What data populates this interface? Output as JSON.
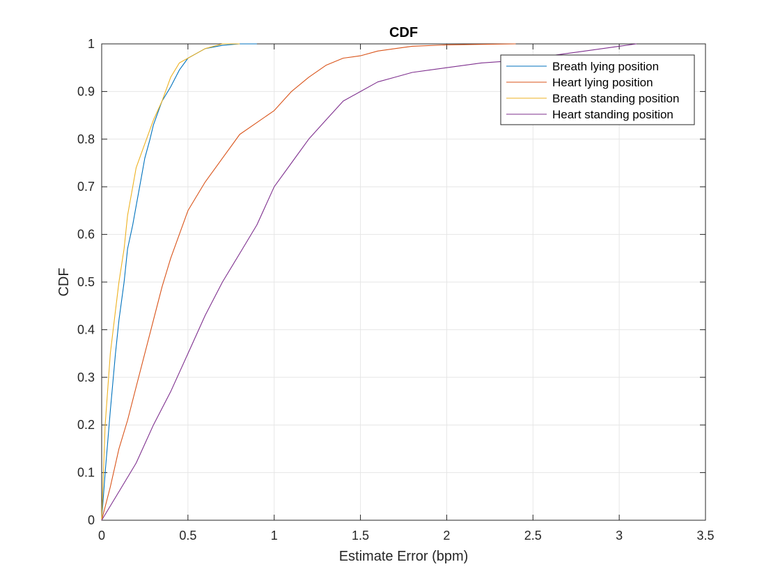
{
  "chart_data": {
    "type": "line",
    "title": "CDF",
    "xlabel": "Estimate Error (bpm)",
    "ylabel": "CDF",
    "xlim": [
      0,
      3.5
    ],
    "ylim": [
      0,
      1
    ],
    "xticks": [
      0,
      0.5,
      1,
      1.5,
      2,
      2.5,
      3,
      3.5
    ],
    "xtick_labels": [
      "0",
      "0.5",
      "1",
      "1.5",
      "2",
      "2.5",
      "3",
      "3.5"
    ],
    "yticks": [
      0,
      0.1,
      0.2,
      0.3,
      0.4,
      0.5,
      0.6,
      0.7,
      0.8,
      0.9,
      1
    ],
    "ytick_labels": [
      "0",
      "0.1",
      "0.2",
      "0.3",
      "0.4",
      "0.5",
      "0.6",
      "0.7",
      "0.8",
      "0.9",
      "1"
    ],
    "grid": true,
    "legend_position": "top-right",
    "series": [
      {
        "name": "Breath lying position",
        "color": "#0072BD",
        "x": [
          0,
          0.02,
          0.05,
          0.08,
          0.1,
          0.13,
          0.15,
          0.18,
          0.2,
          0.23,
          0.25,
          0.28,
          0.3,
          0.33,
          0.35,
          0.4,
          0.45,
          0.5,
          0.55,
          0.6,
          0.7,
          0.8,
          0.9
        ],
        "y": [
          0,
          0.1,
          0.23,
          0.35,
          0.42,
          0.5,
          0.57,
          0.62,
          0.66,
          0.72,
          0.76,
          0.8,
          0.83,
          0.86,
          0.88,
          0.91,
          0.945,
          0.97,
          0.98,
          0.99,
          0.997,
          1.0,
          1.0
        ]
      },
      {
        "name": "Heart lying position",
        "color": "#D95319",
        "x": [
          0,
          0.05,
          0.1,
          0.15,
          0.2,
          0.25,
          0.3,
          0.35,
          0.4,
          0.45,
          0.5,
          0.55,
          0.6,
          0.7,
          0.8,
          0.9,
          1.0,
          1.1,
          1.2,
          1.3,
          1.4,
          1.5,
          1.6,
          1.7,
          1.8,
          2.0,
          2.2,
          2.4
        ],
        "y": [
          0,
          0.07,
          0.15,
          0.21,
          0.28,
          0.35,
          0.42,
          0.49,
          0.55,
          0.6,
          0.65,
          0.68,
          0.71,
          0.76,
          0.81,
          0.835,
          0.86,
          0.9,
          0.93,
          0.955,
          0.97,
          0.975,
          0.985,
          0.99,
          0.995,
          0.998,
          0.999,
          1.0
        ]
      },
      {
        "name": "Breath standing position",
        "color": "#EDB120",
        "x": [
          0,
          0.02,
          0.05,
          0.08,
          0.1,
          0.13,
          0.15,
          0.18,
          0.2,
          0.25,
          0.3,
          0.35,
          0.4,
          0.45,
          0.5,
          0.55,
          0.6,
          0.65,
          0.7,
          0.8
        ],
        "y": [
          0,
          0.2,
          0.35,
          0.44,
          0.5,
          0.57,
          0.64,
          0.7,
          0.74,
          0.79,
          0.84,
          0.88,
          0.93,
          0.96,
          0.97,
          0.98,
          0.99,
          0.995,
          1.0,
          1.0
        ]
      },
      {
        "name": "Heart standing position",
        "color": "#7E2F8E",
        "x": [
          0,
          0.1,
          0.2,
          0.3,
          0.4,
          0.5,
          0.6,
          0.7,
          0.8,
          0.9,
          1.0,
          1.1,
          1.2,
          1.3,
          1.4,
          1.5,
          1.6,
          1.7,
          1.8,
          1.9,
          2.0,
          2.2,
          2.4,
          2.6,
          2.8,
          3.0,
          3.1
        ],
        "y": [
          0,
          0.06,
          0.12,
          0.2,
          0.27,
          0.35,
          0.43,
          0.5,
          0.56,
          0.62,
          0.7,
          0.75,
          0.8,
          0.84,
          0.88,
          0.9,
          0.92,
          0.93,
          0.94,
          0.945,
          0.95,
          0.96,
          0.965,
          0.975,
          0.985,
          0.995,
          1.0
        ]
      }
    ]
  }
}
